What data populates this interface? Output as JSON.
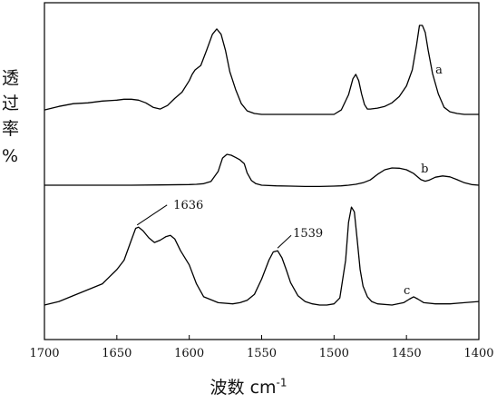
{
  "chart_data": {
    "type": "line",
    "xlabel_main": "波数",
    "xlabel_unit": "cm",
    "xlabel_exp": "-1",
    "ylabel_chars": [
      "透",
      "过",
      "率",
      "%"
    ],
    "xlim": [
      1700,
      1400
    ],
    "x_ticks": [
      1700,
      1650,
      1600,
      1550,
      1500,
      1450,
      1400
    ],
    "y_axis": "relative transmittance, offset traces, no tick labels",
    "grid": false,
    "series": [
      {
        "name": "a",
        "x": [
          1700,
          1690,
          1680,
          1670,
          1660,
          1650,
          1645,
          1640,
          1635,
          1630,
          1625,
          1620,
          1615,
          1610,
          1605,
          1600,
          1598,
          1596,
          1592,
          1588,
          1584,
          1581,
          1578,
          1575,
          1572,
          1568,
          1564,
          1560,
          1555,
          1550,
          1545,
          1540,
          1535,
          1530,
          1525,
          1520,
          1515,
          1510,
          1505,
          1500,
          1495,
          1490,
          1487,
          1485,
          1483,
          1481,
          1479,
          1477,
          1475,
          1470,
          1465,
          1460,
          1455,
          1450,
          1446,
          1443,
          1441,
          1439,
          1437,
          1435,
          1432,
          1428,
          1424,
          1420,
          1415,
          1410,
          1405,
          1400
        ],
        "y": [
          0.05,
          0.09,
          0.12,
          0.13,
          0.15,
          0.16,
          0.17,
          0.17,
          0.16,
          0.13,
          0.08,
          0.06,
          0.1,
          0.18,
          0.25,
          0.38,
          0.45,
          0.5,
          0.55,
          0.72,
          0.9,
          0.96,
          0.9,
          0.72,
          0.48,
          0.28,
          0.12,
          0.04,
          0.01,
          0.0,
          0.0,
          0.0,
          0.0,
          0.0,
          0.0,
          0.0,
          0.0,
          0.0,
          0.0,
          0.0,
          0.05,
          0.22,
          0.4,
          0.45,
          0.38,
          0.23,
          0.11,
          0.06,
          0.06,
          0.07,
          0.09,
          0.13,
          0.2,
          0.32,
          0.5,
          0.78,
          1.0,
          1.0,
          0.92,
          0.72,
          0.46,
          0.23,
          0.08,
          0.03,
          0.01,
          0.0,
          0.0,
          0.0
        ],
        "label": "a"
      },
      {
        "name": "b",
        "x": [
          1700,
          1680,
          1660,
          1640,
          1620,
          1600,
          1595,
          1590,
          1585,
          1580,
          1577,
          1574,
          1571,
          1568,
          1565,
          1562,
          1560,
          1557,
          1554,
          1550,
          1540,
          1530,
          1520,
          1510,
          1500,
          1495,
          1490,
          1485,
          1480,
          1475,
          1470,
          1465,
          1460,
          1455,
          1450,
          1445,
          1440,
          1437,
          1434,
          1430,
          1425,
          1420,
          1415,
          1410,
          1405,
          1400
        ],
        "y": [
          0.0,
          0.0,
          0.0,
          0.0,
          0.01,
          0.02,
          0.03,
          0.05,
          0.12,
          0.45,
          0.88,
          1.0,
          0.97,
          0.9,
          0.82,
          0.7,
          0.4,
          0.15,
          0.05,
          0.0,
          -0.02,
          -0.03,
          -0.04,
          -0.04,
          -0.03,
          -0.02,
          0.0,
          0.03,
          0.08,
          0.17,
          0.35,
          0.5,
          0.56,
          0.55,
          0.5,
          0.38,
          0.18,
          0.13,
          0.17,
          0.26,
          0.3,
          0.27,
          0.18,
          0.08,
          0.02,
          0.0
        ],
        "label": "b"
      },
      {
        "name": "c",
        "x": [
          1700,
          1690,
          1680,
          1670,
          1660,
          1655,
          1650,
          1645,
          1640,
          1637,
          1635,
          1632,
          1628,
          1624,
          1620,
          1616,
          1613,
          1610,
          1606,
          1600,
          1595,
          1590,
          1580,
          1570,
          1565,
          1560,
          1555,
          1550,
          1545,
          1542,
          1539,
          1536,
          1533,
          1530,
          1525,
          1520,
          1515,
          1510,
          1505,
          1500,
          1496,
          1492,
          1490,
          1488,
          1486,
          1484,
          1482,
          1480,
          1477,
          1474,
          1470,
          1460,
          1452,
          1448,
          1445,
          1442,
          1438,
          1430,
          1420,
          1410,
          1400
        ],
        "y": [
          0.0,
          0.03,
          0.08,
          0.13,
          0.18,
          0.24,
          0.3,
          0.38,
          0.55,
          0.65,
          0.66,
          0.63,
          0.57,
          0.53,
          0.55,
          0.58,
          0.59,
          0.56,
          0.46,
          0.34,
          0.18,
          0.07,
          0.02,
          0.01,
          0.02,
          0.04,
          0.09,
          0.22,
          0.38,
          0.45,
          0.46,
          0.4,
          0.3,
          0.19,
          0.08,
          0.03,
          0.01,
          0.0,
          0.0,
          0.01,
          0.06,
          0.38,
          0.7,
          0.83,
          0.79,
          0.55,
          0.3,
          0.16,
          0.07,
          0.03,
          0.01,
          0.0,
          0.02,
          0.05,
          0.07,
          0.05,
          0.02,
          0.01,
          0.01,
          0.02,
          0.03
        ],
        "label": "c"
      }
    ],
    "annotations": [
      {
        "text": "1636",
        "x": 1636
      },
      {
        "text": "1539",
        "x": 1539
      }
    ]
  }
}
